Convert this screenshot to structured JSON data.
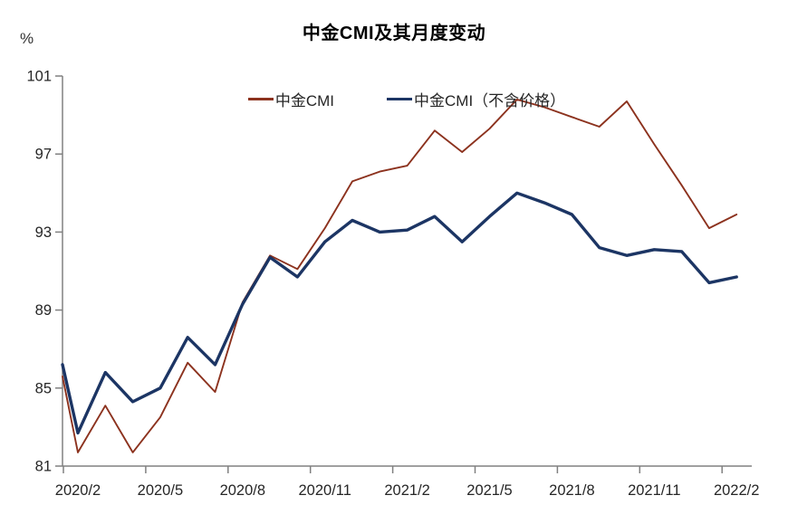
{
  "page": {
    "title": "中金CMI及其月度变动",
    "unit_label": "%"
  },
  "legend": {
    "items": [
      {
        "label": "中金CMI",
        "color": "#8C321E",
        "thickness": 2.4
      },
      {
        "label": "中金CMI（不含价格）",
        "color": "#1C3564",
        "thickness": 3.4
      }
    ]
  },
  "chart_data": {
    "type": "line",
    "title": "中金CMI及其月度变动",
    "ylabel": "%",
    "xlabel": "",
    "grid": false,
    "legend_position": "top-center",
    "ylim": [
      81,
      101
    ],
    "yticks": [
      101,
      97,
      93,
      89,
      85,
      81
    ],
    "categories": [
      "2020/1",
      "2020/2",
      "2020/3",
      "2020/4",
      "2020/5",
      "2020/6",
      "2020/7",
      "2020/8",
      "2020/9",
      "2020/10",
      "2020/11",
      "2020/12",
      "2021/1",
      "2021/2",
      "2021/3",
      "2021/4",
      "2021/5",
      "2021/6",
      "2021/7",
      "2021/8",
      "2021/9",
      "2021/10",
      "2021/11",
      "2021/12",
      "2022/1",
      "2022/2"
    ],
    "xtick_indices": [
      1,
      4,
      7,
      10,
      13,
      16,
      19,
      22,
      25
    ],
    "xtick_labels": [
      "2020/2",
      "2020/5",
      "2020/8",
      "2020/11",
      "2021/2",
      "2021/5",
      "2021/8",
      "2021/11",
      "2022/2"
    ],
    "series": [
      {
        "name": "中金CMI",
        "color": "#8C321E",
        "line_width": 1.9,
        "values": [
          85.6,
          81.7,
          84.1,
          81.7,
          83.5,
          86.3,
          84.8,
          89.4,
          91.8,
          91.1,
          93.2,
          95.6,
          96.1,
          96.4,
          98.2,
          97.1,
          98.3,
          99.8,
          99.4,
          98.9,
          98.4,
          99.7,
          97.5,
          95.4,
          93.2,
          93.9
        ]
      },
      {
        "name": "中金CMI（不含价格）",
        "color": "#1C3564",
        "line_width": 3.4,
        "values": [
          86.2,
          82.7,
          85.8,
          84.3,
          85.0,
          87.6,
          86.2,
          89.3,
          91.7,
          90.7,
          92.5,
          93.6,
          93.0,
          93.1,
          93.8,
          92.5,
          93.8,
          95.0,
          94.5,
          93.9,
          92.2,
          91.8,
          92.1,
          92.0,
          90.4,
          90.7
        ]
      }
    ],
    "axis_color": "#808080",
    "label_color": "#262626"
  }
}
